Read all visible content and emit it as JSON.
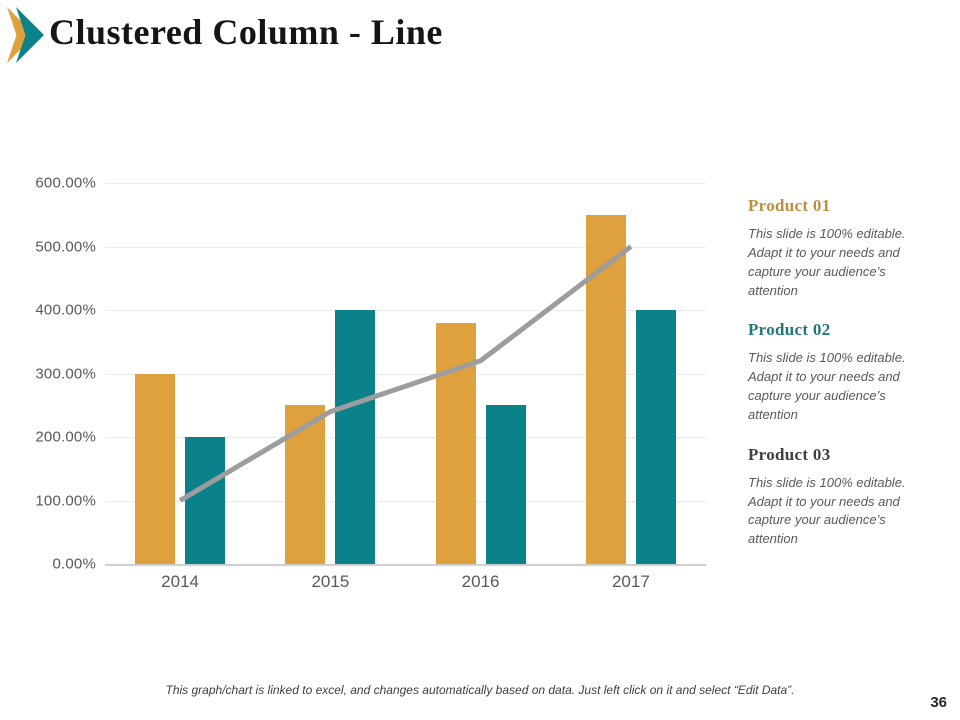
{
  "slide": {
    "title": "Clustered Column - Line",
    "page_number": "36",
    "footer_note": "This graph/chart is linked to excel, and changes automatically based on data. Just left click on it and select “Edit Data”."
  },
  "colors": {
    "accent_orange": "#DFA13E",
    "accent_teal": "#0B8289",
    "line_gray": "#9D9D9D",
    "grid": "#ECECEC",
    "axis": "#CFCFCF",
    "axis_label": "#595959",
    "title_text": "#151515",
    "body_text": "#595959",
    "footer_text": "#3F3F3F",
    "page_number": "#262626"
  },
  "chart_data": {
    "type": "bar",
    "subtype": "clustered-column-with-line",
    "categories": [
      "2014",
      "2015",
      "2016",
      "2017"
    ],
    "series": [
      {
        "type": "bar",
        "color": "#DFA13E",
        "values": [
          300,
          250,
          380,
          550
        ]
      },
      {
        "type": "bar",
        "color": "#0B8289",
        "values": [
          200,
          400,
          250,
          400
        ]
      },
      {
        "type": "line",
        "color": "#9D9D9D",
        "values": [
          100,
          240,
          320,
          500
        ]
      }
    ],
    "title": "",
    "xlabel": "",
    "ylabel": "",
    "ylim": [
      0,
      600
    ],
    "ytick_step": 100,
    "yticks": [
      {
        "label": "600.00%",
        "value": 600
      },
      {
        "label": "500.00%",
        "value": 500
      },
      {
        "label": "400.00%",
        "value": 400
      },
      {
        "label": "300.00%",
        "value": 300
      },
      {
        "label": "200.00%",
        "value": 200
      },
      {
        "label": "100.00%",
        "value": 100
      },
      {
        "label": "0.00%",
        "value": 0
      }
    ],
    "grid": true,
    "legend": "none",
    "value_format": "percent"
  },
  "products": [
    {
      "title": "Product 01",
      "title_color": "#BF8E3D",
      "description": "This slide is 100% editable. Adapt it to your needs and capture your audience’s attention"
    },
    {
      "title": "Product 02",
      "title_color": "#20787E",
      "description": "This slide is 100% editable. Adapt it to your needs and capture your audience’s attention"
    },
    {
      "title": "Product 03",
      "title_color": "#3F3F3F",
      "description": "This slide is 100% editable. Adapt it to your needs and capture your audience’s attention"
    }
  ]
}
